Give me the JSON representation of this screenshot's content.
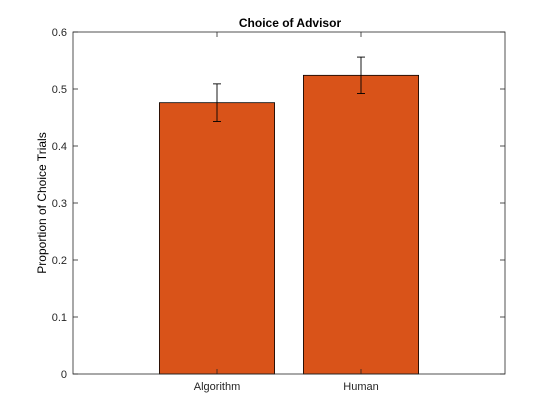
{
  "chart_data": {
    "type": "bar",
    "title": "Choice of Advisor",
    "xlabel": "",
    "ylabel": "Proportion of Choice Trials",
    "categories": [
      "Algorithm",
      "Human"
    ],
    "values": [
      0.476,
      0.524
    ],
    "error_lower": [
      0.443,
      0.492
    ],
    "error_upper": [
      0.509,
      0.556
    ],
    "ylim": [
      0,
      0.6
    ],
    "yticks": [
      0,
      0.1,
      0.2,
      0.3,
      0.4,
      0.5,
      0.6
    ],
    "ytick_labels": [
      "0",
      "0.1",
      "0.2",
      "0.3",
      "0.4",
      "0.5",
      "0.6"
    ],
    "grid": false,
    "bar_color": "#D95319",
    "edge_color": "#000000"
  }
}
